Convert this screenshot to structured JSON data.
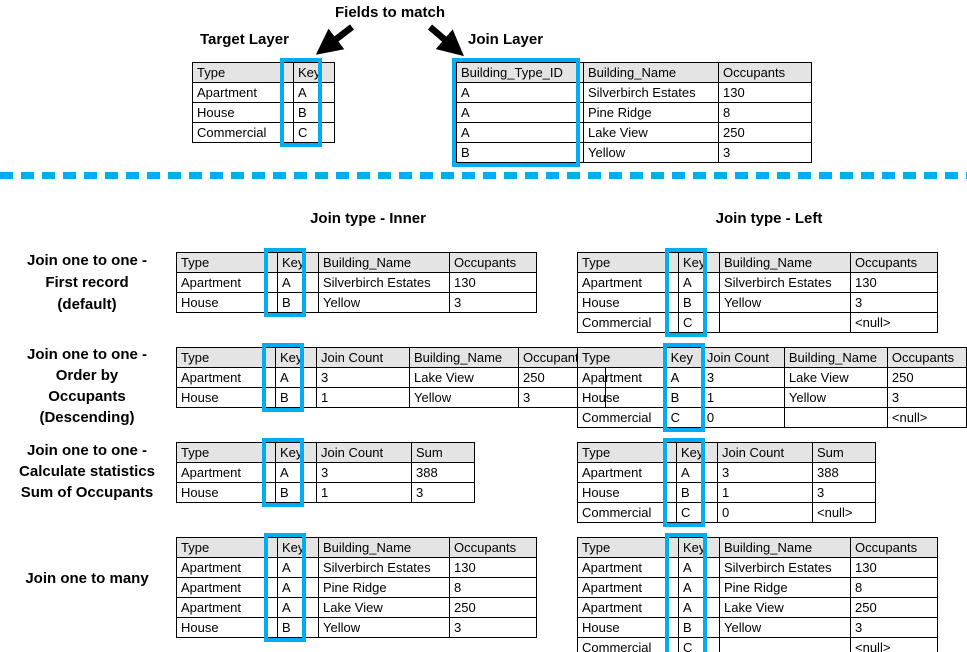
{
  "colors": {
    "accent": "#00AEEF",
    "header_bg": "#E4E4E4",
    "table_border": "#000000",
    "text": "#000000"
  },
  "top": {
    "fields_to_match_label": "Fields to match",
    "target_layer_title": "Target Layer",
    "join_layer_title": "Join Layer",
    "target_table": {
      "headers": [
        "Type",
        "Key"
      ],
      "rows": [
        [
          "Apartment",
          "A"
        ],
        [
          "House",
          "B"
        ],
        [
          "Commercial",
          "C"
        ]
      ]
    },
    "join_table": {
      "headers": [
        "Building_Type_ID",
        "Building_Name",
        "Occupants"
      ],
      "rows": [
        [
          "A",
          "Silverbirch Estates",
          "130"
        ],
        [
          "A",
          "Pine Ridge",
          "8"
        ],
        [
          "A",
          "Lake View",
          "250"
        ],
        [
          "B",
          "Yellow",
          "3"
        ]
      ]
    }
  },
  "join_results": {
    "inner_column_title": "Join type - Inner",
    "left_column_title": "Join type - Left",
    "groups": [
      {
        "label": "Join one to one -\nFirst record\n(default)",
        "inner_table": {
          "headers": [
            "Type",
            "Key",
            "Building_Name",
            "Occupants"
          ],
          "rows": [
            [
              "Apartment",
              "A",
              "Silverbirch Estates",
              "130"
            ],
            [
              "House",
              "B",
              "Yellow",
              "3"
            ]
          ]
        },
        "left_table": {
          "headers": [
            "Type",
            "Key",
            "Building_Name",
            "Occupants"
          ],
          "rows": [
            [
              "Apartment",
              "A",
              "Silverbirch Estates",
              "130"
            ],
            [
              "House",
              "B",
              "Yellow",
              "3"
            ],
            [
              "Commercial",
              "C",
              "",
              "<null>"
            ]
          ]
        }
      },
      {
        "label": "Join one to one -\nOrder by\nOccupants\n(Descending)",
        "inner_table": {
          "headers": [
            "Type",
            "Key",
            "Join Count",
            "Building_Name",
            "Occupants"
          ],
          "rows": [
            [
              "Apartment",
              "A",
              "3",
              "Lake View",
              "250"
            ],
            [
              "House",
              "B",
              "1",
              "Yellow",
              "3"
            ]
          ]
        },
        "left_table": {
          "headers": [
            "Type",
            "Key",
            "Join Count",
            "Building_Name",
            "Occupants"
          ],
          "rows": [
            [
              "Apartment",
              "A",
              "3",
              "Lake View",
              "250"
            ],
            [
              "House",
              "B",
              "1",
              "Yellow",
              "3"
            ],
            [
              "Commercial",
              "C",
              "0",
              "",
              "<null>"
            ]
          ]
        }
      },
      {
        "label": "Join one to one -\nCalculate statistics\nSum of Occupants",
        "inner_table": {
          "headers": [
            "Type",
            "Key",
            "Join Count",
            "Sum"
          ],
          "rows": [
            [
              "Apartment",
              "A",
              "3",
              "388"
            ],
            [
              "House",
              "B",
              "1",
              "3"
            ]
          ]
        },
        "left_table": {
          "headers": [
            "Type",
            "Key",
            "Join Count",
            "Sum"
          ],
          "rows": [
            [
              "Apartment",
              "A",
              "3",
              "388"
            ],
            [
              "House",
              "B",
              "1",
              "3"
            ],
            [
              "Commercial",
              "C",
              "0",
              "<null>"
            ]
          ]
        }
      },
      {
        "label": "Join one to many",
        "inner_table": {
          "headers": [
            "Type",
            "Key",
            "Building_Name",
            "Occupants"
          ],
          "rows": [
            [
              "Apartment",
              "A",
              "Silverbirch Estates",
              "130"
            ],
            [
              "Apartment",
              "A",
              "Pine Ridge",
              "8"
            ],
            [
              "Apartment",
              "A",
              "Lake View",
              "250"
            ],
            [
              "House",
              "B",
              "Yellow",
              "3"
            ]
          ]
        },
        "left_table": {
          "headers": [
            "Type",
            "Key",
            "Building_Name",
            "Occupants"
          ],
          "rows": [
            [
              "Apartment",
              "A",
              "Silverbirch Estates",
              "130"
            ],
            [
              "Apartment",
              "A",
              "Pine Ridge",
              "8"
            ],
            [
              "Apartment",
              "A",
              "Lake View",
              "250"
            ],
            [
              "House",
              "B",
              "Yellow",
              "3"
            ],
            [
              "Commercial",
              "C",
              "",
              "<null>"
            ]
          ]
        }
      }
    ]
  }
}
